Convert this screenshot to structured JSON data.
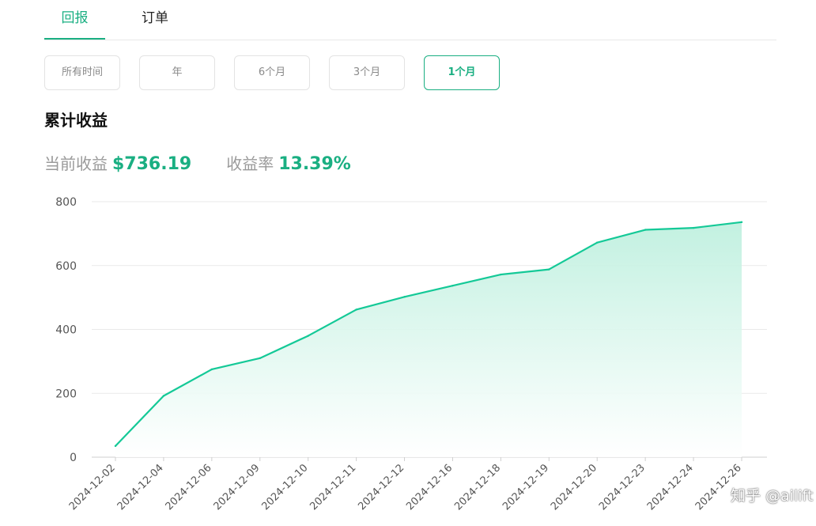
{
  "tabs": [
    {
      "label": "回报",
      "active": true
    },
    {
      "label": "订单",
      "active": false
    }
  ],
  "range_buttons": [
    {
      "label": "所有时间",
      "active": false
    },
    {
      "label": "年",
      "active": false
    },
    {
      "label": "6个月",
      "active": false
    },
    {
      "label": "3个月",
      "active": false
    },
    {
      "label": "1个月",
      "active": true
    }
  ],
  "section_title": "累计收益",
  "stats": {
    "current_label": "当前收益",
    "current_value": "$736.19",
    "rate_label": "收益率",
    "rate_value": "13.39%"
  },
  "colors": {
    "accent": "#1aaf82",
    "line": "#14c997",
    "grid": "#e9e9e9"
  },
  "watermark": "知乎 @ailift",
  "chart_data": {
    "type": "area",
    "x": [
      "2024-12-02",
      "2024-12-04",
      "2024-12-06",
      "2024-12-09",
      "2024-12-10",
      "2024-12-11",
      "2024-12-12",
      "2024-12-16",
      "2024-12-18",
      "2024-12-19",
      "2024-12-20",
      "2024-12-23",
      "2024-12-24",
      "2024-12-26"
    ],
    "series": [
      {
        "values": [
          35,
          192,
          275,
          310,
          380,
          462,
          502,
          537,
          572,
          588,
          672,
          712,
          718,
          736
        ]
      }
    ],
    "ylim": [
      0,
      800
    ],
    "yticks": [
      0,
      200,
      400,
      600,
      800
    ],
    "grid": true,
    "title": "",
    "xlabel": "",
    "ylabel": ""
  }
}
